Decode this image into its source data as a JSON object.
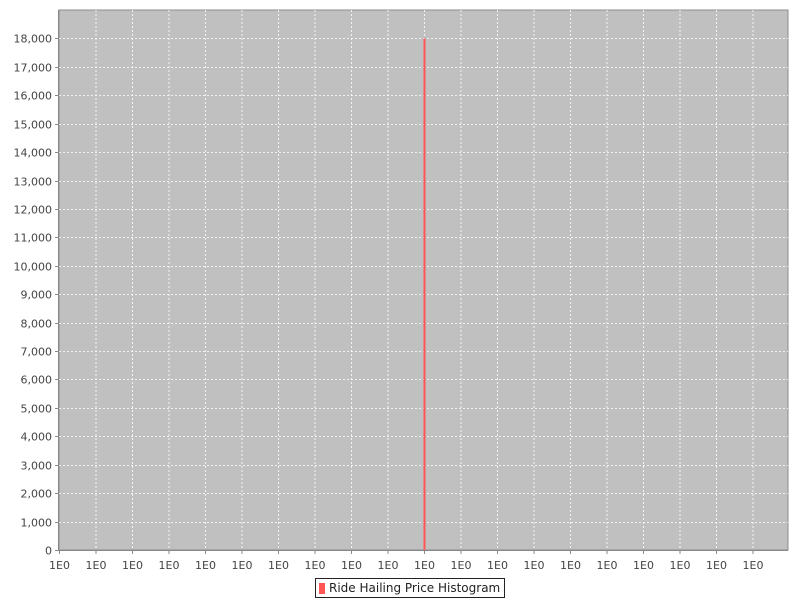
{
  "chart_data": {
    "type": "bar",
    "title": "",
    "xlabel": "",
    "ylabel": "",
    "ylim": [
      0,
      19000
    ],
    "y_ticks": [
      0,
      1000,
      2000,
      3000,
      4000,
      5000,
      6000,
      7000,
      8000,
      9000,
      10000,
      11000,
      12000,
      13000,
      14000,
      15000,
      16000,
      17000,
      18000
    ],
    "y_tick_labels": [
      "0",
      "1,000",
      "2,000",
      "3,000",
      "4,000",
      "5,000",
      "6,000",
      "7,000",
      "8,000",
      "9,000",
      "10,000",
      "11,000",
      "12,000",
      "13,000",
      "14,000",
      "15,000",
      "16,000",
      "17,000",
      "18,000"
    ],
    "x_tick_labels": [
      "1E0",
      "1E0",
      "1E0",
      "1E0",
      "1E0",
      "1E0",
      "1E0",
      "1E0",
      "1E0",
      "1E0",
      "1E0",
      "1E0",
      "1E0",
      "1E0",
      "1E0",
      "1E0",
      "1E0",
      "1E0",
      "1E0",
      "1E0"
    ],
    "series": [
      {
        "name": "Ride Hailing Price Histogram",
        "color": "#ff5555",
        "bars": [
          {
            "x_tick_index": 10,
            "value": 18000
          }
        ]
      }
    ],
    "grid": true,
    "plot_background": "#c0c0c0",
    "gridline_color": "#ffffff",
    "legend_position": "bottom-center"
  }
}
